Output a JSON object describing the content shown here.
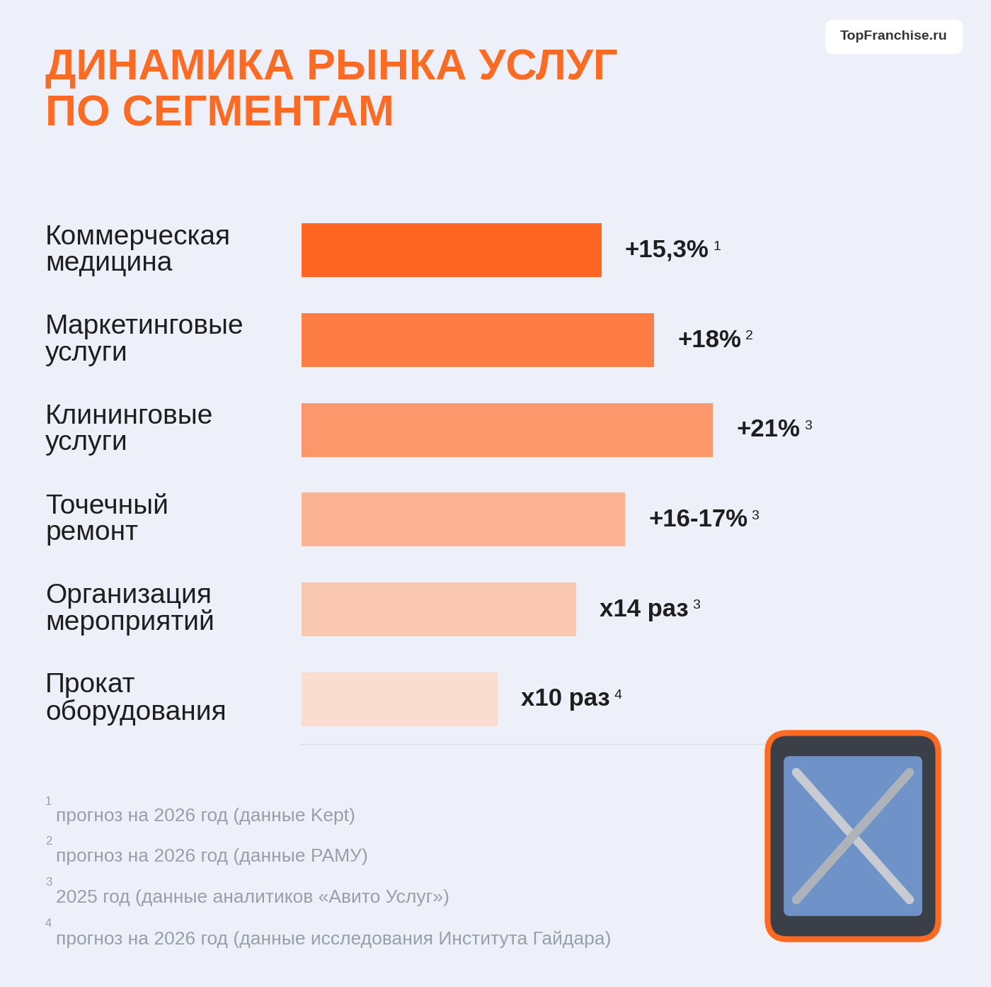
{
  "chart_data": {
    "type": "bar",
    "orientation": "horizontal",
    "title": "ДИНАМИКА РЫНКА УСЛУГ\nПО СЕГМЕНТАМ",
    "source": "TopFranchise.ru",
    "categories": [
      "Коммерческая\nмедицина",
      "Маркетинговые\nуслуги",
      "Клининговые\nуслуги",
      "Точечный\nремонт",
      "Организация\nмероприятий",
      "Прокат\nоборудования"
    ],
    "values": [
      15.3,
      18,
      21,
      16.5,
      14,
      10
    ],
    "value_labels": [
      "+15,3%",
      "+18%",
      "+21%",
      "+16-17%",
      "x14 раз",
      "x10 раз"
    ],
    "footnote_refs": [
      "1",
      "2",
      "3",
      "3",
      "3",
      "4"
    ],
    "colors": [
      "#ff6622",
      "#fd7d45",
      "#fc976b",
      "#fbb393",
      "#fac7b1",
      "#fadcd0"
    ],
    "xlim": [
      0,
      25
    ],
    "xticks": [],
    "tick_labels": false,
    "data_labels": true,
    "grid": false,
    "footnotes": [
      {
        "mark": "1",
        "text": "прогноз на 2026 год (данные Kept)"
      },
      {
        "mark": "2",
        "text": "прогноз на 2026 год (данные РАМУ)"
      },
      {
        "mark": "3",
        "text": "2025 год (данные аналитиков «Авито Услуг»)"
      },
      {
        "mark": "4",
        "text": "прогноз на 2026 год (данные исследования Института Гайдара)"
      }
    ]
  }
}
